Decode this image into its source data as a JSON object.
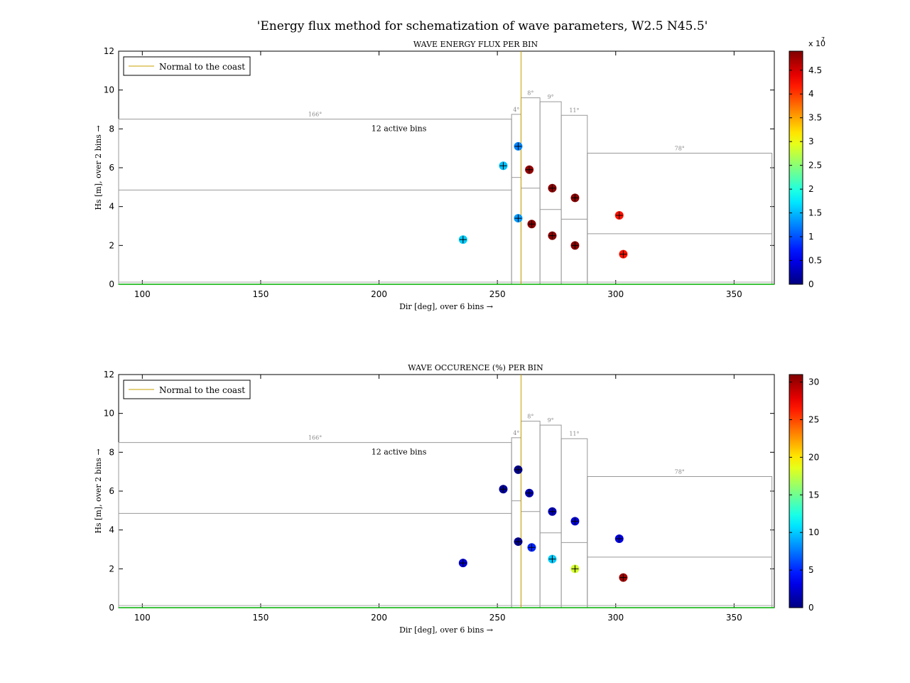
{
  "figure": {
    "suptitle": "'Energy flux method for schematization of wave parameters, W2.5 N45.5'"
  },
  "chart_data": [
    {
      "type": "scatter",
      "title": "WAVE ENERGY FLUX PER BIN",
      "xlabel": "Dir [deg], over 6 bins →",
      "ylabel": "Hs [m], over 2 bins →",
      "xlim": [
        90,
        367
      ],
      "ylim": [
        0,
        12
      ],
      "xticks": [
        100,
        150,
        200,
        250,
        300,
        350
      ],
      "yticks": [
        0,
        2,
        4,
        6,
        8,
        10,
        12
      ],
      "grid": false,
      "legend": {
        "position": "top-left",
        "entries": [
          "Normal to the coast"
        ]
      },
      "normal_to_coast_dir": 260,
      "normal_line_color": "#c8a000",
      "bottom_line_color": "#00b000",
      "annotation": "12 active bins",
      "colorbar": {
        "colormap": "jet",
        "min": 0,
        "max": 49000000,
        "ticks": [
          0,
          0.5,
          1,
          1.5,
          2,
          2.5,
          3,
          3.5,
          4,
          4.5
        ],
        "tick_labels": [
          "0",
          "0.5",
          "1",
          "1.5",
          "2",
          "2.5",
          "3",
          "3.5",
          "4",
          "4.5"
        ],
        "scale_label_base": "x 10",
        "scale_label_exp": "7"
      },
      "bins": [
        {
          "x0": 90,
          "x1": 256,
          "y_split": 4.85,
          "y_top": 8.5,
          "width_label": "166°"
        },
        {
          "x0": 256,
          "x1": 260,
          "y_split": 5.5,
          "y_top": 8.75,
          "width_label": "4°"
        },
        {
          "x0": 260,
          "x1": 268,
          "y_split": 4.95,
          "y_top": 9.6,
          "width_label": "8°"
        },
        {
          "x0": 268,
          "x1": 277,
          "y_split": 3.85,
          "y_top": 9.4,
          "width_label": "9°"
        },
        {
          "x0": 277,
          "x1": 288,
          "y_split": 3.35,
          "y_top": 8.7,
          "width_label": "11°"
        },
        {
          "x0": 288,
          "x1": 366,
          "y_split": 2.6,
          "y_top": 6.75,
          "width_label": "78°"
        }
      ],
      "points": [
        {
          "x": 235.5,
          "y": 2.3,
          "value": 16000000
        },
        {
          "x": 252.5,
          "y": 6.1,
          "value": 15500000
        },
        {
          "x": 258.8,
          "y": 3.4,
          "value": 13500000
        },
        {
          "x": 258.8,
          "y": 7.1,
          "value": 12500000
        },
        {
          "x": 263.5,
          "y": 5.9,
          "value": 48000000
        },
        {
          "x": 264.5,
          "y": 3.1,
          "value": 48500000
        },
        {
          "x": 273.2,
          "y": 4.95,
          "value": 48500000
        },
        {
          "x": 273.2,
          "y": 2.5,
          "value": 48500000
        },
        {
          "x": 282.8,
          "y": 4.45,
          "value": 48500000
        },
        {
          "x": 282.8,
          "y": 2.0,
          "value": 48500000
        },
        {
          "x": 301.5,
          "y": 3.55,
          "value": 42000000
        },
        {
          "x": 303.2,
          "y": 1.55,
          "value": 42000000
        }
      ]
    },
    {
      "type": "scatter",
      "title": "WAVE OCCURENCE (%) PER BIN",
      "xlabel": "Dir [deg], over 6 bins →",
      "ylabel": "Hs [m], over 2 bins →",
      "xlim": [
        90,
        367
      ],
      "ylim": [
        0,
        12
      ],
      "xticks": [
        100,
        150,
        200,
        250,
        300,
        350
      ],
      "yticks": [
        0,
        2,
        4,
        6,
        8,
        10,
        12
      ],
      "grid": false,
      "legend": {
        "position": "top-left",
        "entries": [
          "Normal to the coast"
        ]
      },
      "normal_to_coast_dir": 260,
      "normal_line_color": "#c8a000",
      "bottom_line_color": "#00b000",
      "annotation": "12 active bins",
      "colorbar": {
        "colormap": "jet",
        "min": 0,
        "max": 31,
        "ticks": [
          0,
          5,
          10,
          15,
          20,
          25,
          30
        ],
        "tick_labels": [
          "0",
          "5",
          "10",
          "15",
          "20",
          "25",
          "30"
        ]
      },
      "bins": [
        {
          "x0": 90,
          "x1": 256,
          "y_split": 4.85,
          "y_top": 8.5,
          "width_label": "166°"
        },
        {
          "x0": 256,
          "x1": 260,
          "y_split": 5.5,
          "y_top": 8.75,
          "width_label": "4°"
        },
        {
          "x0": 260,
          "x1": 268,
          "y_split": 4.95,
          "y_top": 9.6,
          "width_label": "8°"
        },
        {
          "x0": 268,
          "x1": 277,
          "y_split": 3.85,
          "y_top": 9.4,
          "width_label": "9°"
        },
        {
          "x0": 277,
          "x1": 288,
          "y_split": 3.35,
          "y_top": 8.7,
          "width_label": "11°"
        },
        {
          "x0": 288,
          "x1": 366,
          "y_split": 2.6,
          "y_top": 6.75,
          "width_label": "78°"
        }
      ],
      "points": [
        {
          "x": 235.5,
          "y": 2.3,
          "value": 2.5
        },
        {
          "x": 252.5,
          "y": 6.1,
          "value": 0.8
        },
        {
          "x": 258.8,
          "y": 3.4,
          "value": 0.6
        },
        {
          "x": 258.8,
          "y": 7.1,
          "value": 0.4
        },
        {
          "x": 263.5,
          "y": 5.9,
          "value": 1.5
        },
        {
          "x": 264.5,
          "y": 3.1,
          "value": 5.0
        },
        {
          "x": 273.2,
          "y": 4.95,
          "value": 1.8
        },
        {
          "x": 273.2,
          "y": 2.5,
          "value": 10.0
        },
        {
          "x": 282.8,
          "y": 4.45,
          "value": 2.5
        },
        {
          "x": 282.8,
          "y": 2.0,
          "value": 18.0
        },
        {
          "x": 301.5,
          "y": 3.55,
          "value": 3.0
        },
        {
          "x": 303.2,
          "y": 1.55,
          "value": 30.0
        }
      ]
    }
  ]
}
